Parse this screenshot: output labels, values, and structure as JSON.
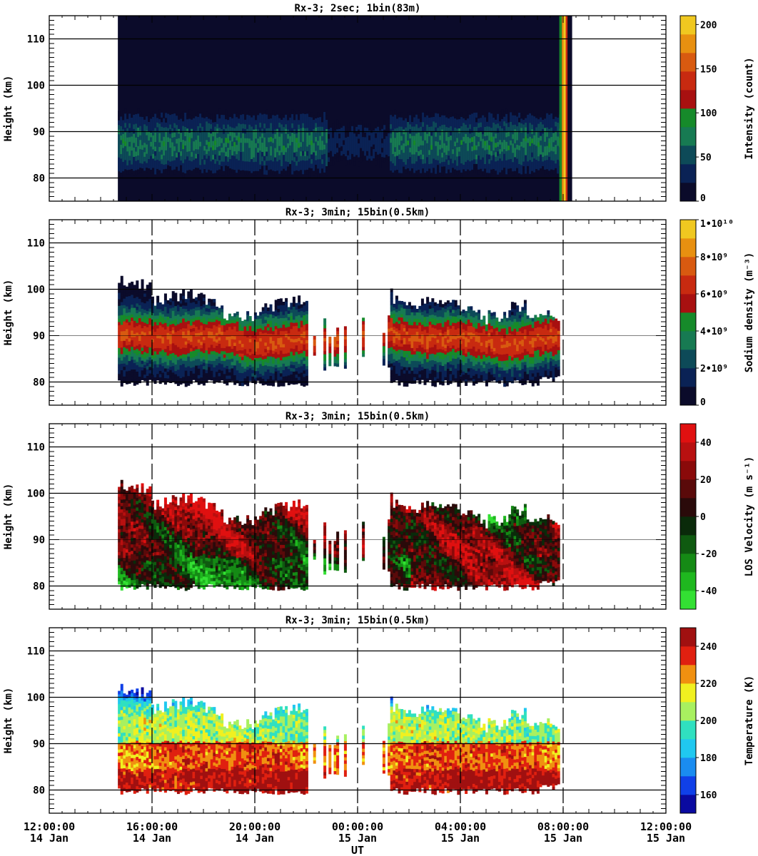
{
  "figure": {
    "xlabel": "UT",
    "x_ticks": [
      {
        "time": "12:00:00",
        "day": "14 Jan"
      },
      {
        "time": "16:00:00",
        "day": "14 Jan"
      },
      {
        "time": "20:00:00",
        "day": "14 Jan"
      },
      {
        "time": "00:00:00",
        "day": "15 Jan"
      },
      {
        "time": "04:00:00",
        "day": "15 Jan"
      },
      {
        "time": "08:00:00",
        "day": "15 Jan"
      },
      {
        "time": "12:00:00",
        "day": "15 Jan"
      }
    ]
  },
  "chart_data": [
    {
      "type": "heatmap",
      "title": "Rx-3;  2sec; 1bin(83m)",
      "xlabel": "UT",
      "ylabel": "Height (km)",
      "xlim": [
        "2015-01-14 12:00",
        "2015-01-15 12:00"
      ],
      "ylim": [
        75,
        115
      ],
      "y_ticks": [
        80,
        90,
        100,
        110
      ],
      "colorbar": {
        "label": "Intensity (count)",
        "ticks": [
          "0",
          "50",
          "100",
          "150",
          "200"
        ],
        "tick_values": [
          0,
          50,
          100,
          150,
          200
        ],
        "range": [
          0,
          210
        ],
        "colors": [
          "#0b0b2a",
          "#0a2255",
          "#0d4a58",
          "#177a52",
          "#168a2a",
          "#a81010",
          "#c82a10",
          "#d85a10",
          "#e89010",
          "#f0c820"
        ]
      },
      "data_extent_x": [
        "14 Jan 14:40",
        "15 Jan 08:10"
      ],
      "layer": {
        "bottom_km": 79.5,
        "top_km": 96,
        "peak_km": 87,
        "peak_value": 70
      },
      "bright_edge_time": "15 Jan 07:50"
    },
    {
      "type": "heatmap",
      "title": "Rx-3; 3min; 15bin(0.5km)",
      "xlabel": "UT",
      "ylabel": "Height (km)",
      "xlim": [
        "2015-01-14 12:00",
        "2015-01-15 12:00"
      ],
      "ylim": [
        75,
        115
      ],
      "y_ticks": [
        80,
        90,
        100,
        110
      ],
      "colorbar": {
        "label": "Sodium density (m⁻³)",
        "ticks": [
          "0",
          "2•10⁹",
          "4•10⁹",
          "6•10⁹",
          "8•10⁹",
          "1•10¹⁰"
        ],
        "tick_values": [
          0,
          2000000000.0,
          4000000000.0,
          6000000000.0,
          8000000000.0,
          10000000000.0
        ],
        "range": [
          0,
          10000000000.0
        ],
        "colors": [
          "#0b0b2a",
          "#0a2255",
          "#0d4a58",
          "#177a52",
          "#168a2a",
          "#a81010",
          "#c82a10",
          "#d85a10",
          "#e89010",
          "#f0c820"
        ]
      },
      "data_extent_x": [
        "14 Jan 14:40",
        "15 Jan 07:50"
      ],
      "gap_x": [
        "14 Jan 22:00",
        "15 Jan 01:10"
      ],
      "layer": {
        "bottom_km": 79,
        "top_km": 101,
        "peak_km": 89,
        "peak_value": 6500000000.0
      }
    },
    {
      "type": "heatmap",
      "title": "Rx-3; 3min; 15bin(0.5km)",
      "xlabel": "UT",
      "ylabel": "Height (km)",
      "xlim": [
        "2015-01-14 12:00",
        "2015-01-15 12:00"
      ],
      "ylim": [
        75,
        115
      ],
      "y_ticks": [
        80,
        90,
        100,
        110
      ],
      "colorbar": {
        "label": "LOS Velocity (m s⁻¹)",
        "ticks": [
          "-40",
          "-20",
          "0",
          "20",
          "40"
        ],
        "tick_values": [
          -40,
          -20,
          0,
          20,
          40
        ],
        "range": [
          -50,
          50
        ],
        "colors": [
          "#33e033",
          "#1fb81f",
          "#158a15",
          "#0f5a10",
          "#0a2a0a",
          "#2a0a0a",
          "#5a0a0a",
          "#8a0a0a",
          "#b81010",
          "#e01010"
        ]
      },
      "data_extent_x": [
        "14 Jan 14:40",
        "15 Jan 07:50"
      ],
      "gap_x": [
        "14 Jan 22:00",
        "15 Jan 01:10"
      ],
      "layer": {
        "bottom_km": 79,
        "top_km": 101
      }
    },
    {
      "type": "heatmap",
      "title": "Rx-3; 3min; 15bin(0.5km)",
      "xlabel": "UT",
      "ylabel": "Height (km)",
      "xlim": [
        "2015-01-14 12:00",
        "2015-01-15 12:00"
      ],
      "ylim": [
        75,
        115
      ],
      "y_ticks": [
        80,
        90,
        100,
        110
      ],
      "colorbar": {
        "label": "Temperature (K)",
        "ticks": [
          "160",
          "180",
          "200",
          "220",
          "240"
        ],
        "tick_values": [
          160,
          180,
          200,
          220,
          240
        ],
        "range": [
          150,
          250
        ],
        "colors": [
          "#0a0aa0",
          "#1040e8",
          "#1a8cf0",
          "#20c8f0",
          "#30e0c0",
          "#a8f060",
          "#f0f020",
          "#f09010",
          "#e02010",
          "#a01010"
        ]
      },
      "data_extent_x": [
        "14 Jan 14:40",
        "15 Jan 07:50"
      ],
      "gap_x": [
        "14 Jan 22:00",
        "15 Jan 01:10"
      ],
      "layer": {
        "bottom_km": 79,
        "top_km": 101
      }
    }
  ]
}
